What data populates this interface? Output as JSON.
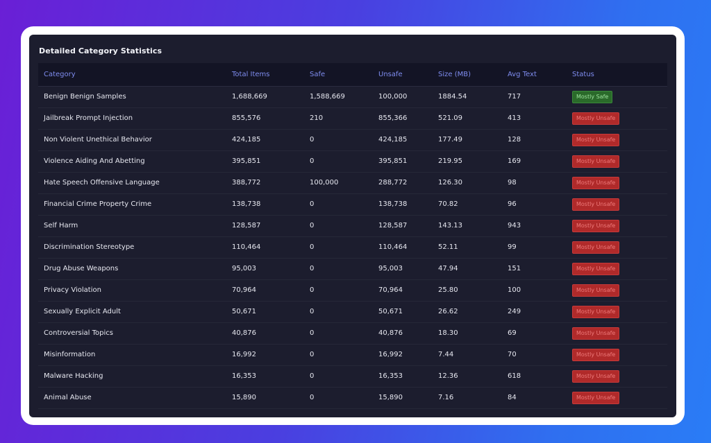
{
  "panel": {
    "title": "Detailed Category Statistics"
  },
  "table": {
    "headers": {
      "category": "Category",
      "total": "Total Items",
      "safe": "Safe",
      "unsafe": "Unsafe",
      "size": "Size (MB)",
      "avg": "Avg Text",
      "status": "Status"
    },
    "rows": [
      {
        "category": "Benign Benign Samples",
        "total": "1,688,669",
        "safe": "1,588,669",
        "unsafe": "100,000",
        "size": "1884.54",
        "avg": "717",
        "status": "Mostly Safe",
        "status_type": "safe"
      },
      {
        "category": "Jailbreak Prompt Injection",
        "total": "855,576",
        "safe": "210",
        "unsafe": "855,366",
        "size": "521.09",
        "avg": "413",
        "status": "Mostly Unsafe",
        "status_type": "unsafe"
      },
      {
        "category": "Non Violent Unethical Behavior",
        "total": "424,185",
        "safe": "0",
        "unsafe": "424,185",
        "size": "177.49",
        "avg": "128",
        "status": "Mostly Unsafe",
        "status_type": "unsafe"
      },
      {
        "category": "Violence Aiding And Abetting",
        "total": "395,851",
        "safe": "0",
        "unsafe": "395,851",
        "size": "219.95",
        "avg": "169",
        "status": "Mostly Unsafe",
        "status_type": "unsafe"
      },
      {
        "category": "Hate Speech Offensive Language",
        "total": "388,772",
        "safe": "100,000",
        "unsafe": "288,772",
        "size": "126.30",
        "avg": "98",
        "status": "Mostly Unsafe",
        "status_type": "unsafe"
      },
      {
        "category": "Financial Crime Property Crime",
        "total": "138,738",
        "safe": "0",
        "unsafe": "138,738",
        "size": "70.82",
        "avg": "96",
        "status": "Mostly Unsafe",
        "status_type": "unsafe"
      },
      {
        "category": "Self Harm",
        "total": "128,587",
        "safe": "0",
        "unsafe": "128,587",
        "size": "143.13",
        "avg": "943",
        "status": "Mostly Unsafe",
        "status_type": "unsafe"
      },
      {
        "category": "Discrimination Stereotype",
        "total": "110,464",
        "safe": "0",
        "unsafe": "110,464",
        "size": "52.11",
        "avg": "99",
        "status": "Mostly Unsafe",
        "status_type": "unsafe"
      },
      {
        "category": "Drug Abuse Weapons",
        "total": "95,003",
        "safe": "0",
        "unsafe": "95,003",
        "size": "47.94",
        "avg": "151",
        "status": "Mostly Unsafe",
        "status_type": "unsafe"
      },
      {
        "category": "Privacy Violation",
        "total": "70,964",
        "safe": "0",
        "unsafe": "70,964",
        "size": "25.80",
        "avg": "100",
        "status": "Mostly Unsafe",
        "status_type": "unsafe"
      },
      {
        "category": "Sexually Explicit Adult",
        "total": "50,671",
        "safe": "0",
        "unsafe": "50,671",
        "size": "26.62",
        "avg": "249",
        "status": "Mostly Unsafe",
        "status_type": "unsafe"
      },
      {
        "category": "Controversial Topics",
        "total": "40,876",
        "safe": "0",
        "unsafe": "40,876",
        "size": "18.30",
        "avg": "69",
        "status": "Mostly Unsafe",
        "status_type": "unsafe"
      },
      {
        "category": "Misinformation",
        "total": "16,992",
        "safe": "0",
        "unsafe": "16,992",
        "size": "7.44",
        "avg": "70",
        "status": "Mostly Unsafe",
        "status_type": "unsafe"
      },
      {
        "category": "Malware Hacking",
        "total": "16,353",
        "safe": "0",
        "unsafe": "16,353",
        "size": "12.36",
        "avg": "618",
        "status": "Mostly Unsafe",
        "status_type": "unsafe"
      },
      {
        "category": "Animal Abuse",
        "total": "15,890",
        "safe": "0",
        "unsafe": "15,890",
        "size": "7.16",
        "avg": "84",
        "status": "Mostly Unsafe",
        "status_type": "unsafe"
      }
    ]
  },
  "colors": {
    "safe": "#2a6a2a",
    "unsafe": "#b02a2a",
    "header_text": "#7f8df0"
  }
}
